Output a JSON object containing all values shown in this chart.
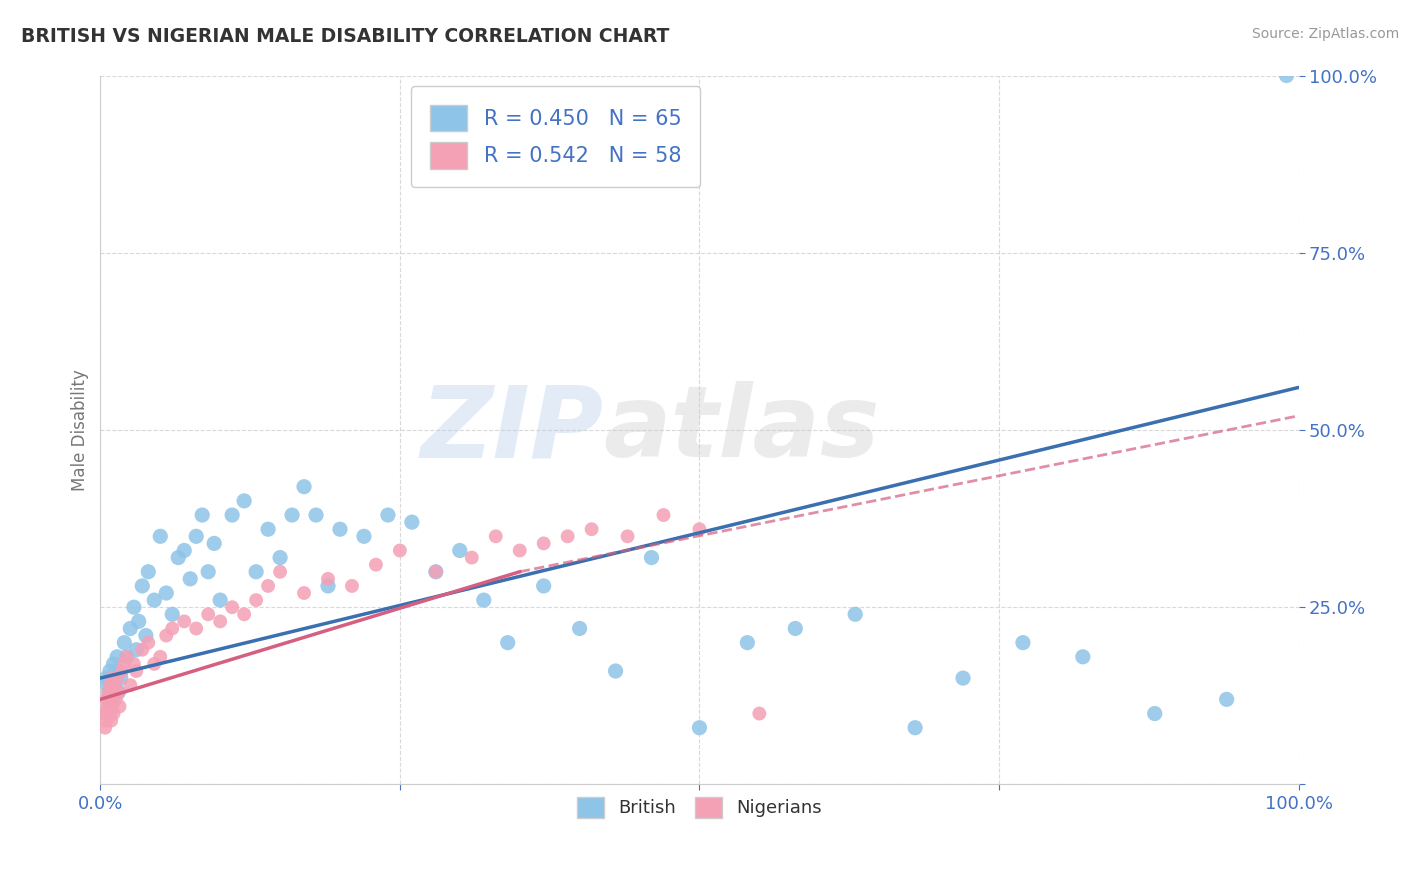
{
  "title": "BRITISH VS NIGERIAN MALE DISABILITY CORRELATION CHART",
  "source": "Source: ZipAtlas.com",
  "ylabel": "Male Disability",
  "xlim": [
    0,
    100
  ],
  "ylim": [
    0,
    100
  ],
  "british_color": "#8ec4e8",
  "nigerian_color": "#f4a0b5",
  "british_line_color": "#3a6fb0",
  "nigerian_line_color": "#d45f80",
  "british_R": 0.45,
  "british_N": 65,
  "nigerian_R": 0.542,
  "nigerian_N": 58,
  "legend_label_british": "R = 0.450   N = 65",
  "legend_label_nigerian": "R = 0.542   N = 58",
  "watermark_zip": "ZIP",
  "watermark_atlas": "atlas",
  "background_color": "#ffffff",
  "grid_color": "#d0d0d0",
  "british_x": [
    0.5,
    0.6,
    0.7,
    0.8,
    0.9,
    1.0,
    1.1,
    1.2,
    1.3,
    1.4,
    1.5,
    1.7,
    2.0,
    2.2,
    2.5,
    2.8,
    3.0,
    3.2,
    3.5,
    3.8,
    4.0,
    4.5,
    5.0,
    5.5,
    6.0,
    6.5,
    7.0,
    7.5,
    8.0,
    8.5,
    9.0,
    9.5,
    10.0,
    11.0,
    12.0,
    13.0,
    14.0,
    15.0,
    16.0,
    17.0,
    18.0,
    19.0,
    20.0,
    22.0,
    24.0,
    26.0,
    28.0,
    30.0,
    32.0,
    34.0,
    37.0,
    40.0,
    43.0,
    46.0,
    50.0,
    54.0,
    58.0,
    63.0,
    68.0,
    72.0,
    77.0,
    82.0,
    88.0,
    94.0,
    99.0
  ],
  "british_y": [
    15,
    14,
    13,
    16,
    12,
    15,
    17,
    14,
    16,
    18,
    13,
    15,
    20,
    18,
    22,
    25,
    19,
    23,
    28,
    21,
    30,
    26,
    35,
    27,
    24,
    32,
    33,
    29,
    35,
    38,
    30,
    34,
    26,
    38,
    40,
    30,
    36,
    32,
    38,
    42,
    38,
    28,
    36,
    35,
    38,
    37,
    30,
    33,
    26,
    20,
    28,
    22,
    16,
    32,
    8,
    20,
    22,
    24,
    8,
    15,
    20,
    18,
    10,
    12,
    100
  ],
  "nigerian_x": [
    0.3,
    0.4,
    0.5,
    0.5,
    0.6,
    0.6,
    0.7,
    0.7,
    0.8,
    0.8,
    0.9,
    0.9,
    1.0,
    1.0,
    1.1,
    1.1,
    1.2,
    1.3,
    1.4,
    1.5,
    1.6,
    1.8,
    2.0,
    2.2,
    2.5,
    2.8,
    3.0,
    3.5,
    4.0,
    4.5,
    5.0,
    5.5,
    6.0,
    7.0,
    8.0,
    9.0,
    10.0,
    11.0,
    12.0,
    13.0,
    14.0,
    15.0,
    17.0,
    19.0,
    21.0,
    23.0,
    25.0,
    28.0,
    31.0,
    33.0,
    35.0,
    37.0,
    39.0,
    41.0,
    44.0,
    47.0,
    50.0,
    55.0
  ],
  "nigerian_y": [
    10,
    8,
    12,
    9,
    11,
    10,
    13,
    11,
    14,
    10,
    12,
    9,
    15,
    11,
    13,
    10,
    14,
    12,
    15,
    13,
    11,
    16,
    17,
    18,
    14,
    17,
    16,
    19,
    20,
    17,
    18,
    21,
    22,
    23,
    22,
    24,
    23,
    25,
    24,
    26,
    28,
    30,
    27,
    29,
    28,
    31,
    33,
    30,
    32,
    35,
    33,
    34,
    35,
    36,
    35,
    38,
    36,
    10
  ],
  "british_line_x0": 0,
  "british_line_y0": 15,
  "british_line_x1": 100,
  "british_line_y1": 56,
  "nigerian_solid_x0": 0,
  "nigerian_solid_y0": 12,
  "nigerian_solid_x1": 35,
  "nigerian_solid_y1": 30,
  "nigerian_dash_x0": 35,
  "nigerian_dash_y0": 30,
  "nigerian_dash_x1": 100,
  "nigerian_dash_y1": 52
}
